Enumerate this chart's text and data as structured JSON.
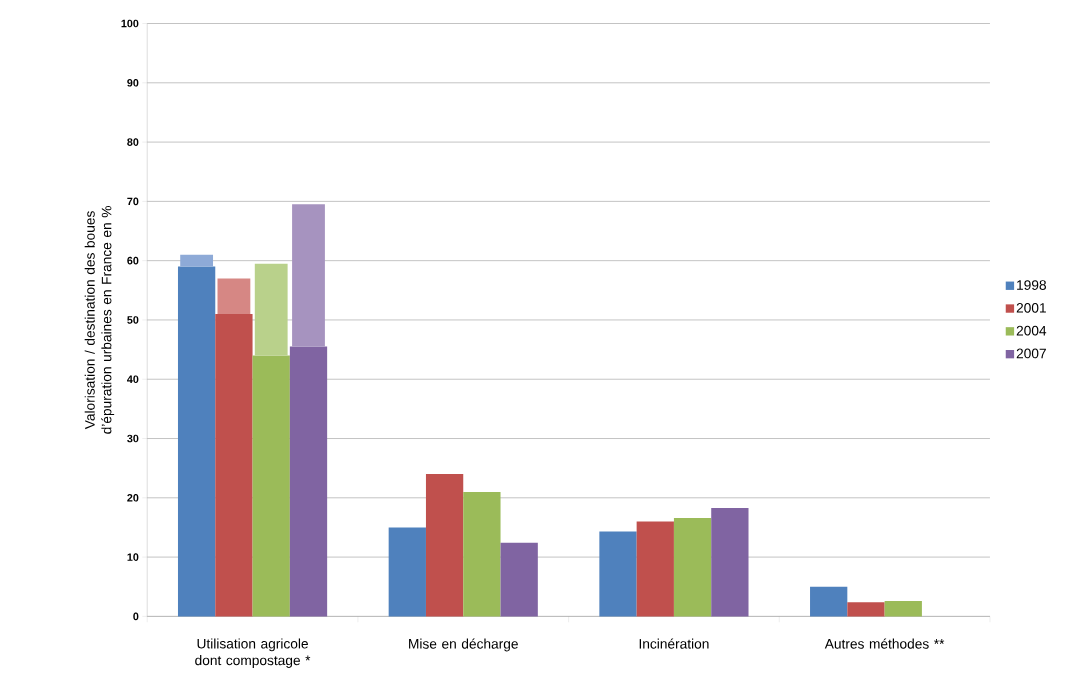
{
  "chart_data": {
    "type": "bar",
    "ylabel": "Valorisation / destination des boues d’épuration urbaines en France en %",
    "categories": [
      "Utilisation agricole dont compostage *",
      "Mise en décharge",
      "Incinération",
      "Autres méthodes **"
    ],
    "ylim": [
      0,
      100
    ],
    "yticks": [
      0,
      10,
      20,
      30,
      40,
      50,
      60,
      70,
      80,
      90,
      100
    ],
    "grid": "y",
    "legend": "right",
    "series": [
      {
        "name": "1998",
        "color": "#4f81bd",
        "values": [
          59,
          15,
          14.3,
          5
        ]
      },
      {
        "name": "2001",
        "color": "#c0504d",
        "values": [
          51,
          24,
          16,
          2.4
        ]
      },
      {
        "name": "2004",
        "color": "#9bbb59",
        "values": [
          44,
          21,
          16.6,
          2.6
        ]
      },
      {
        "name": "2007",
        "color": "#8064a2",
        "values": [
          45.5,
          12.4,
          18.3,
          null
        ]
      },
      {
        "color": "#8eaad7",
        "base": [
          59,
          null,
          null,
          null
        ],
        "values": [
          2,
          null,
          null,
          null
        ]
      },
      {
        "color": "#d68784",
        "base": [
          51,
          null,
          null,
          null
        ],
        "values": [
          6,
          null,
          null,
          null
        ]
      },
      {
        "color": "#b9d18b",
        "base": [
          44,
          null,
          null,
          null
        ],
        "values": [
          15.5,
          null,
          null,
          null
        ]
      },
      {
        "color": "#a693bf",
        "base": [
          45.5,
          null,
          null,
          null
        ],
        "values": [
          24,
          null,
          null,
          null
        ]
      }
    ]
  }
}
